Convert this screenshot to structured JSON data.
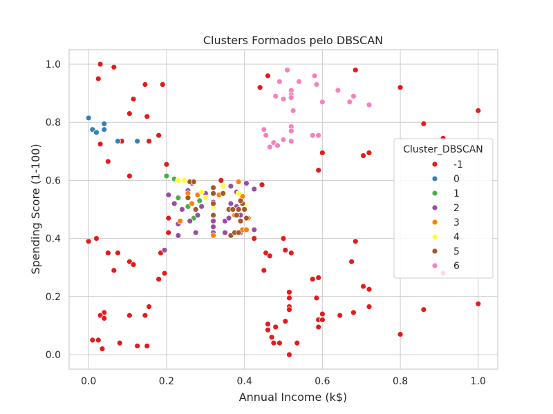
{
  "chart_data": {
    "type": "scatter",
    "title": "Clusters Formados pelo DBSCAN",
    "xlabel": "Annual Income (k$)",
    "ylabel": "Spending Score (1-100)",
    "xlim": [
      -0.05,
      1.05
    ],
    "ylim": [
      -0.05,
      1.05
    ],
    "x_ticks": [
      "0.0",
      "0.2",
      "0.4",
      "0.6",
      "0.8",
      "1.0"
    ],
    "y_ticks": [
      "0.0",
      "0.2",
      "0.4",
      "0.6",
      "0.8",
      "1.0"
    ],
    "grid": true,
    "legend": {
      "title": "Cluster_DBSCAN",
      "placement": "center-right"
    },
    "series": [
      {
        "name": "-1",
        "color": "#e41a1c",
        "points": [
          [
            0.03,
            1.0
          ],
          [
            0.065,
            0.99
          ],
          [
            0.025,
            0.95
          ],
          [
            0.145,
            0.93
          ],
          [
            0.19,
            0.93
          ],
          [
            0.115,
            0.88
          ],
          [
            0.105,
            0.83
          ],
          [
            0.15,
            0.82
          ],
          [
            0.03,
            0.725
          ],
          [
            0.085,
            0.735
          ],
          [
            0.155,
            0.735
          ],
          [
            0.18,
            0.755
          ],
          [
            0.05,
            0.665
          ],
          [
            0.2,
            0.655
          ],
          [
            0.105,
            0.615
          ],
          [
            0.0,
            0.39
          ],
          [
            0.02,
            0.4
          ],
          [
            0.05,
            0.35
          ],
          [
            0.075,
            0.35
          ],
          [
            0.065,
            0.29
          ],
          [
            0.105,
            0.32
          ],
          [
            0.115,
            0.31
          ],
          [
            0.185,
            0.35
          ],
          [
            0.205,
            0.42
          ],
          [
            0.205,
            0.47
          ],
          [
            0.195,
            0.28
          ],
          [
            0.18,
            0.26
          ],
          [
            0.155,
            0.165
          ],
          [
            0.105,
            0.135
          ],
          [
            0.145,
            0.135
          ],
          [
            0.04,
            0.145
          ],
          [
            0.03,
            0.135
          ],
          [
            0.04,
            0.125
          ],
          [
            0.01,
            0.05
          ],
          [
            0.025,
            0.05
          ],
          [
            0.035,
            0.02
          ],
          [
            0.08,
            0.04
          ],
          [
            0.125,
            0.03
          ],
          [
            0.15,
            0.03
          ],
          [
            0.34,
            0.6
          ],
          [
            0.425,
            0.4
          ],
          [
            0.445,
            0.585
          ],
          [
            0.44,
            0.92
          ],
          [
            0.46,
            0.96
          ],
          [
            0.685,
            0.98
          ],
          [
            0.8,
            0.92
          ],
          [
            0.86,
            0.795
          ],
          [
            0.91,
            0.745
          ],
          [
            1.0,
            0.84
          ],
          [
            0.6,
            0.695
          ],
          [
            0.705,
            0.685
          ],
          [
            0.72,
            0.695
          ],
          [
            0.59,
            0.635
          ],
          [
            0.5,
            0.4
          ],
          [
            0.505,
            0.36
          ],
          [
            0.52,
            0.35
          ],
          [
            0.455,
            0.35
          ],
          [
            0.465,
            0.34
          ],
          [
            0.45,
            0.29
          ],
          [
            0.575,
            0.26
          ],
          [
            0.59,
            0.265
          ],
          [
            0.585,
            0.195
          ],
          [
            0.515,
            0.215
          ],
          [
            0.515,
            0.195
          ],
          [
            0.515,
            0.165
          ],
          [
            0.515,
            0.155
          ],
          [
            0.6,
            0.14
          ],
          [
            0.59,
            0.12
          ],
          [
            0.6,
            0.12
          ],
          [
            0.59,
            0.095
          ],
          [
            0.645,
            0.135
          ],
          [
            0.68,
            0.145
          ],
          [
            0.675,
            0.32
          ],
          [
            0.685,
            0.39
          ],
          [
            0.705,
            0.235
          ],
          [
            0.72,
            0.225
          ],
          [
            0.72,
            0.165
          ],
          [
            0.86,
            0.155
          ],
          [
            0.91,
            0.28
          ],
          [
            1.0,
            0.175
          ],
          [
            0.8,
            0.07
          ],
          [
            0.46,
            0.105
          ],
          [
            0.46,
            0.085
          ],
          [
            0.48,
            0.095
          ],
          [
            0.505,
            0.115
          ],
          [
            0.47,
            0.06
          ],
          [
            0.475,
            0.04
          ],
          [
            0.49,
            0.04
          ],
          [
            0.535,
            0.04
          ],
          [
            0.515,
            0.0
          ]
        ]
      },
      {
        "name": "0",
        "color": "#377eb8",
        "points": [
          [
            0.0,
            0.815
          ],
          [
            0.01,
            0.775
          ],
          [
            0.02,
            0.765
          ],
          [
            0.04,
            0.795
          ],
          [
            0.04,
            0.775
          ],
          [
            0.075,
            0.735
          ],
          [
            0.125,
            0.735
          ]
        ]
      },
      {
        "name": "1",
        "color": "#4daf4a",
        "points": [
          [
            0.2,
            0.615
          ],
          [
            0.22,
            0.605
          ],
          [
            0.23,
            0.54
          ],
          [
            0.255,
            0.51
          ],
          [
            0.27,
            0.47
          ],
          [
            0.285,
            0.53
          ]
        ]
      },
      {
        "name": "2",
        "color": "#984ea3",
        "points": [
          [
            0.205,
            0.55
          ],
          [
            0.23,
            0.45
          ],
          [
            0.23,
            0.41
          ],
          [
            0.26,
            0.46
          ],
          [
            0.24,
            0.5
          ],
          [
            0.22,
            0.52
          ],
          [
            0.255,
            0.565
          ],
          [
            0.265,
            0.59
          ],
          [
            0.275,
            0.42
          ],
          [
            0.28,
            0.48
          ],
          [
            0.29,
            0.51
          ],
          [
            0.3,
            0.555
          ],
          [
            0.32,
            0.46
          ],
          [
            0.32,
            0.44
          ],
          [
            0.32,
            0.42
          ],
          [
            0.32,
            0.525
          ],
          [
            0.35,
            0.42
          ],
          [
            0.35,
            0.46
          ],
          [
            0.36,
            0.47
          ],
          [
            0.365,
            0.52
          ],
          [
            0.365,
            0.58
          ],
          [
            0.38,
            0.56
          ],
          [
            0.38,
            0.51
          ],
          [
            0.39,
            0.42
          ],
          [
            0.39,
            0.48
          ],
          [
            0.4,
            0.505
          ],
          [
            0.405,
            0.59
          ],
          [
            0.425,
            0.57
          ],
          [
            0.425,
            0.43
          ],
          [
            0.195,
            0.36
          ]
        ]
      },
      {
        "name": "3",
        "color": "#ff7f00",
        "points": [
          [
            0.235,
            0.46
          ],
          [
            0.255,
            0.555
          ],
          [
            0.265,
            0.52
          ],
          [
            0.28,
            0.55
          ],
          [
            0.32,
            0.41
          ],
          [
            0.32,
            0.51
          ],
          [
            0.335,
            0.55
          ],
          [
            0.36,
            0.5
          ],
          [
            0.375,
            0.48
          ],
          [
            0.385,
            0.595
          ],
          [
            0.385,
            0.42
          ],
          [
            0.395,
            0.43
          ],
          [
            0.405,
            0.43
          ],
          [
            0.395,
            0.545
          ],
          [
            0.41,
            0.47
          ]
        ]
      },
      {
        "name": "4",
        "color": "#ffff33",
        "points": [
          [
            0.23,
            0.6
          ],
          [
            0.245,
            0.6
          ],
          [
            0.29,
            0.56
          ],
          [
            0.3,
            0.54
          ],
          [
            0.32,
            0.51
          ],
          [
            0.345,
            0.58
          ],
          [
            0.385,
            0.555
          ],
          [
            0.4,
            0.515
          ]
        ]
      },
      {
        "name": "5",
        "color": "#a65628",
        "points": [
          [
            0.26,
            0.595
          ],
          [
            0.27,
            0.595
          ],
          [
            0.255,
            0.54
          ],
          [
            0.275,
            0.5
          ],
          [
            0.32,
            0.575
          ],
          [
            0.32,
            0.555
          ],
          [
            0.32,
            0.52
          ],
          [
            0.32,
            0.48
          ],
          [
            0.345,
            0.555
          ],
          [
            0.36,
            0.5
          ],
          [
            0.365,
            0.41
          ],
          [
            0.375,
            0.42
          ],
          [
            0.37,
            0.5
          ],
          [
            0.38,
            0.48
          ],
          [
            0.385,
            0.5
          ],
          [
            0.39,
            0.46
          ],
          [
            0.395,
            0.52
          ],
          [
            0.39,
            0.53
          ],
          [
            0.4,
            0.5
          ],
          [
            0.405,
            0.47
          ],
          [
            0.385,
            0.42
          ]
        ]
      },
      {
        "name": "6",
        "color": "#f781bf",
        "points": [
          [
            0.51,
            0.98
          ],
          [
            0.58,
            0.96
          ],
          [
            0.54,
            0.94
          ],
          [
            0.49,
            0.94
          ],
          [
            0.585,
            0.93
          ],
          [
            0.52,
            0.91
          ],
          [
            0.52,
            0.895
          ],
          [
            0.52,
            0.885
          ],
          [
            0.64,
            0.91
          ],
          [
            0.48,
            0.89
          ],
          [
            0.5,
            0.88
          ],
          [
            0.6,
            0.87
          ],
          [
            0.67,
            0.87
          ],
          [
            0.68,
            0.89
          ],
          [
            0.72,
            0.86
          ],
          [
            0.525,
            0.84
          ],
          [
            0.45,
            0.775
          ],
          [
            0.455,
            0.755
          ],
          [
            0.52,
            0.785
          ],
          [
            0.52,
            0.77
          ],
          [
            0.575,
            0.755
          ],
          [
            0.59,
            0.755
          ],
          [
            0.5,
            0.74
          ],
          [
            0.52,
            0.735
          ],
          [
            0.475,
            0.73
          ],
          [
            0.485,
            0.72
          ],
          [
            0.465,
            0.715
          ]
        ]
      }
    ]
  }
}
